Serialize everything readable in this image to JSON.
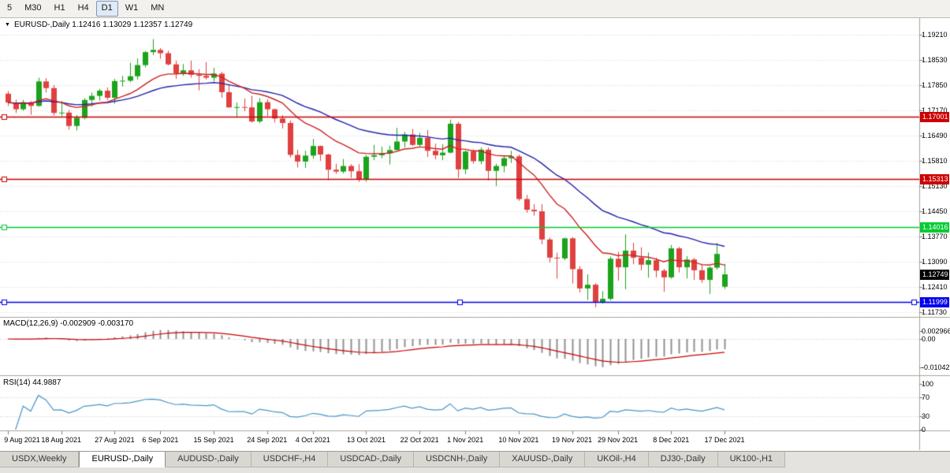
{
  "toolbar": {
    "timeframes": [
      {
        "label": "5",
        "active": false
      },
      {
        "label": "M30",
        "active": false
      },
      {
        "label": "H1",
        "active": false
      },
      {
        "label": "H4",
        "active": false
      },
      {
        "label": "D1",
        "active": true
      },
      {
        "label": "W1",
        "active": false
      },
      {
        "label": "MN",
        "active": false
      }
    ]
  },
  "chart": {
    "collapse_icon": "▼",
    "main_title": "EURUSD-,Daily 1.12416 1.13029 1.12357 1.12749",
    "macd_title": "MACD(12,26,9) -0.002909 -0.003170",
    "rsi_title": "RSI(14) 44.9887"
  },
  "chart_data": {
    "type": "candlestick",
    "symbol": "EURUSD-",
    "period": "Daily",
    "last_ohlc": {
      "open": 1.12416,
      "high": 1.13029,
      "low": 1.12357,
      "close": 1.12749
    },
    "price_axis_ticks": [
      "1.19210",
      "1.18530",
      "1.17850",
      "1.17170",
      "1.16490",
      "1.15810",
      "1.15130",
      "1.14450",
      "1.13770",
      "1.13090",
      "1.12410",
      "1.11730"
    ],
    "hlines": [
      {
        "price": 1.17001,
        "label": "1.17001",
        "color": "#cc0000",
        "selected": false
      },
      {
        "price": 1.15313,
        "label": "1.15313",
        "color": "#cc0000",
        "selected": false
      },
      {
        "price": 1.14016,
        "label": "1.14016",
        "color": "#00cc33",
        "selected": false
      },
      {
        "price": 1.11999,
        "label": "1.11999",
        "color": "#0000ee",
        "selected": true
      }
    ],
    "current_price": {
      "price": 1.12749,
      "label": "1.12749",
      "color": "#000000"
    },
    "candle_colors": {
      "up": "#1ca31c",
      "down": "#e04040"
    },
    "moving_averages": [
      {
        "type": "ema",
        "period": 30,
        "color": "#2222aa"
      },
      {
        "type": "ema",
        "period": 13,
        "color": "#cc2222"
      }
    ],
    "macd": {
      "params": [
        12,
        26,
        9
      ],
      "histogram_color": "#909090",
      "signal_color": "#cc0000",
      "axis_labels": [
        {
          "value": 0.002966,
          "label": "0.002966"
        },
        {
          "value": 0,
          "label": "0.00"
        },
        {
          "value": -0.01042,
          "label": "-0.01042"
        }
      ]
    },
    "rsi": {
      "period": 14,
      "color": "#4a96c8",
      "levels": [
        70,
        30
      ],
      "last_value": 44.9887,
      "axis_labels": [
        {
          "value": 100,
          "label": "100"
        },
        {
          "value": 70,
          "label": "70"
        },
        {
          "value": 30,
          "label": "30"
        },
        {
          "value": 0,
          "label": "0"
        }
      ]
    },
    "date_labels": [
      {
        "i": 0,
        "label": "9 Aug 2021"
      },
      {
        "i": 7,
        "label": "18 Aug 2021"
      },
      {
        "i": 14,
        "label": "27 Aug 2021"
      },
      {
        "i": 20,
        "label": "6 Sep 2021"
      },
      {
        "i": 27,
        "label": "15 Sep 2021"
      },
      {
        "i": 34,
        "label": "24 Sep 2021"
      },
      {
        "i": 40,
        "label": "4 Oct 2021"
      },
      {
        "i": 47,
        "label": "13 Oct 2021"
      },
      {
        "i": 54,
        "label": "22 Oct 2021"
      },
      {
        "i": 60,
        "label": "1 Nov 2021"
      },
      {
        "i": 67,
        "label": "10 Nov 2021"
      },
      {
        "i": 74,
        "label": "19 Nov 2021"
      },
      {
        "i": 80,
        "label": "29 Nov 2021"
      },
      {
        "i": 87,
        "label": "8 Dec 2021"
      },
      {
        "i": 94,
        "label": "17 Dec 2021"
      }
    ],
    "candles": [
      [
        1.1762,
        1.1769,
        1.1729,
        1.1738
      ],
      [
        1.1738,
        1.1746,
        1.171,
        1.172
      ],
      [
        1.172,
        1.1745,
        1.1716,
        1.1739
      ],
      [
        1.1739,
        1.1742,
        1.1705,
        1.1729
      ],
      [
        1.1729,
        1.1805,
        1.1727,
        1.1795
      ],
      [
        1.1795,
        1.1804,
        1.1765,
        1.1777
      ],
      [
        1.1777,
        1.1785,
        1.1703,
        1.171
      ],
      [
        1.171,
        1.1742,
        1.1701,
        1.1711
      ],
      [
        1.1711,
        1.1718,
        1.1665,
        1.1675
      ],
      [
        1.1675,
        1.1704,
        1.1663,
        1.1697
      ],
      [
        1.1697,
        1.175,
        1.1693,
        1.1745
      ],
      [
        1.1745,
        1.1765,
        1.1727,
        1.1756
      ],
      [
        1.1756,
        1.1775,
        1.1743,
        1.177
      ],
      [
        1.177,
        1.1779,
        1.1745,
        1.1751
      ],
      [
        1.1751,
        1.1802,
        1.1735,
        1.1796
      ],
      [
        1.1796,
        1.181,
        1.1781,
        1.1797
      ],
      [
        1.1797,
        1.1845,
        1.1793,
        1.1809
      ],
      [
        1.1809,
        1.1857,
        1.18,
        1.1839
      ],
      [
        1.1839,
        1.1877,
        1.1833,
        1.1874
      ],
      [
        1.1874,
        1.1909,
        1.1866,
        1.188
      ],
      [
        1.188,
        1.1885,
        1.1856,
        1.1871
      ],
      [
        1.1871,
        1.1878,
        1.1838,
        1.1841
      ],
      [
        1.1841,
        1.1851,
        1.1802,
        1.1817
      ],
      [
        1.1817,
        1.1842,
        1.181,
        1.1825
      ],
      [
        1.1825,
        1.1851,
        1.1805,
        1.1813
      ],
      [
        1.1813,
        1.1828,
        1.1771,
        1.181
      ],
      [
        1.181,
        1.1847,
        1.18,
        1.1805
      ],
      [
        1.1805,
        1.1832,
        1.1795,
        1.1816
      ],
      [
        1.1816,
        1.1821,
        1.1751,
        1.1766
      ],
      [
        1.1766,
        1.1788,
        1.1724,
        1.1725
      ],
      [
        1.1725,
        1.1738,
        1.17,
        1.1726
      ],
      [
        1.1726,
        1.1749,
        1.1715,
        1.1725
      ],
      [
        1.1725,
        1.1756,
        1.1684,
        1.1687
      ],
      [
        1.1687,
        1.175,
        1.1683,
        1.1739
      ],
      [
        1.1739,
        1.1747,
        1.1701,
        1.172
      ],
      [
        1.172,
        1.1722,
        1.1684,
        1.1695
      ],
      [
        1.1695,
        1.1704,
        1.1668,
        1.1683
      ],
      [
        1.1683,
        1.169,
        1.159,
        1.1597
      ],
      [
        1.1597,
        1.1611,
        1.1563,
        1.1579
      ],
      [
        1.1579,
        1.1608,
        1.1562,
        1.1595
      ],
      [
        1.1595,
        1.164,
        1.1586,
        1.1621
      ],
      [
        1.1621,
        1.1622,
        1.1581,
        1.1598
      ],
      [
        1.1598,
        1.16,
        1.1529,
        1.1557
      ],
      [
        1.1557,
        1.1573,
        1.1546,
        1.1552
      ],
      [
        1.1552,
        1.1586,
        1.1547,
        1.1567
      ],
      [
        1.1567,
        1.1572,
        1.1535,
        1.1553
      ],
      [
        1.1553,
        1.1572,
        1.1524,
        1.1531
      ],
      [
        1.1531,
        1.1597,
        1.1525,
        1.1592
      ],
      [
        1.1592,
        1.1624,
        1.1583,
        1.1596
      ],
      [
        1.1596,
        1.1619,
        1.1588,
        1.1601
      ],
      [
        1.1601,
        1.1622,
        1.1571,
        1.161
      ],
      [
        1.161,
        1.167,
        1.1609,
        1.1633
      ],
      [
        1.1633,
        1.1659,
        1.1617,
        1.1652
      ],
      [
        1.1652,
        1.1667,
        1.1621,
        1.1624
      ],
      [
        1.1624,
        1.1656,
        1.162,
        1.1643
      ],
      [
        1.1643,
        1.1664,
        1.1591,
        1.1608
      ],
      [
        1.1608,
        1.1627,
        1.1585,
        1.1596
      ],
      [
        1.1596,
        1.1626,
        1.1583,
        1.1603
      ],
      [
        1.1603,
        1.1692,
        1.1601,
        1.1681
      ],
      [
        1.1681,
        1.1686,
        1.1535,
        1.1558
      ],
      [
        1.1558,
        1.1609,
        1.1545,
        1.1606
      ],
      [
        1.1606,
        1.1612,
        1.1573,
        1.158
      ],
      [
        1.158,
        1.1617,
        1.1572,
        1.1611
      ],
      [
        1.1611,
        1.1617,
        1.1528,
        1.1554
      ],
      [
        1.1554,
        1.1573,
        1.1513,
        1.1567
      ],
      [
        1.1567,
        1.1594,
        1.155,
        1.1588
      ],
      [
        1.1588,
        1.1608,
        1.1575,
        1.1593
      ],
      [
        1.1593,
        1.1598,
        1.1473,
        1.1478
      ],
      [
        1.1478,
        1.1489,
        1.1441,
        1.1449
      ],
      [
        1.1449,
        1.1464,
        1.1433,
        1.1445
      ],
      [
        1.1445,
        1.1464,
        1.1356,
        1.1369
      ],
      [
        1.1369,
        1.1374,
        1.1307,
        1.132
      ],
      [
        1.132,
        1.1333,
        1.1263,
        1.1318
      ],
      [
        1.1318,
        1.1374,
        1.1313,
        1.1372
      ],
      [
        1.1372,
        1.1375,
        1.125,
        1.1289
      ],
      [
        1.1289,
        1.1297,
        1.1226,
        1.1237
      ],
      [
        1.1237,
        1.1275,
        1.1206,
        1.1247
      ],
      [
        1.1247,
        1.1251,
        1.1186,
        1.12
      ],
      [
        1.12,
        1.123,
        1.1196,
        1.1209
      ],
      [
        1.1209,
        1.1323,
        1.1205,
        1.1317
      ],
      [
        1.1317,
        1.1336,
        1.1258,
        1.1294
      ],
      [
        1.1294,
        1.1383,
        1.1235,
        1.1339
      ],
      [
        1.1339,
        1.136,
        1.1302,
        1.132
      ],
      [
        1.132,
        1.1348,
        1.1286,
        1.1301
      ],
      [
        1.1301,
        1.1334,
        1.1266,
        1.1313
      ],
      [
        1.1313,
        1.132,
        1.1267,
        1.1285
      ],
      [
        1.1285,
        1.129,
        1.1228,
        1.1267
      ],
      [
        1.1267,
        1.1354,
        1.1263,
        1.1345
      ],
      [
        1.1345,
        1.1349,
        1.128,
        1.1294
      ],
      [
        1.1294,
        1.1324,
        1.1264,
        1.1315
      ],
      [
        1.1315,
        1.1319,
        1.126,
        1.1286
      ],
      [
        1.1286,
        1.1303,
        1.1252,
        1.126
      ],
      [
        1.126,
        1.1296,
        1.1222,
        1.1293
      ],
      [
        1.1293,
        1.136,
        1.1288,
        1.133
      ],
      [
        1.12416,
        1.13029,
        1.12357,
        1.12749
      ]
    ]
  },
  "tabs": [
    {
      "label": "USDX,Weekly",
      "active": false
    },
    {
      "label": "EURUSD-,Daily",
      "active": true
    },
    {
      "label": "AUDUSD-,Daily",
      "active": false
    },
    {
      "label": "USDCHF-,H4",
      "active": false
    },
    {
      "label": "USDCAD-,Daily",
      "active": false
    },
    {
      "label": "USDCNH-,Daily",
      "active": false
    },
    {
      "label": "XAUUSD-,Daily",
      "active": false
    },
    {
      "label": "UKOil-,H4",
      "active": false
    },
    {
      "label": "DJ30-,Daily",
      "active": false
    },
    {
      "label": "UK100-,H1",
      "active": false
    }
  ]
}
